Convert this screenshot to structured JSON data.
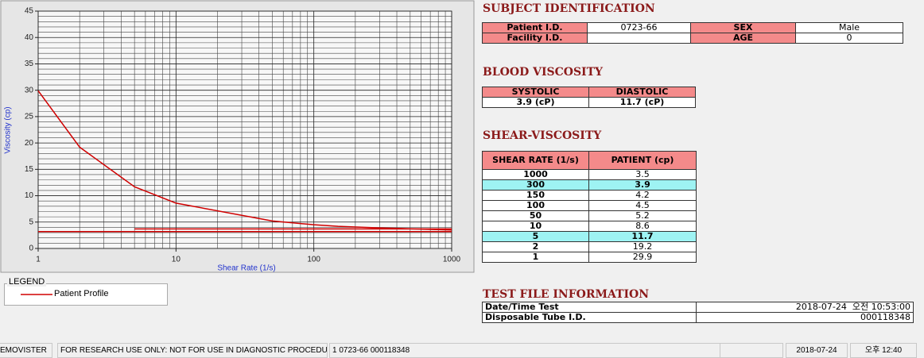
{
  "chart": {
    "type": "line",
    "x_label": "Shear Rate (1/s)",
    "y_label": "Viscosity (cp)",
    "xlim": [
      1,
      1000
    ],
    "ylim": [
      0,
      45
    ],
    "log_x": true,
    "grid": true,
    "xticks": [
      1,
      10,
      100,
      1000
    ],
    "xminor": [
      2,
      3,
      4,
      5,
      6,
      7,
      8,
      9,
      20,
      30,
      40,
      50,
      60,
      70,
      80,
      90,
      200,
      300,
      400,
      500,
      600,
      700,
      800,
      900
    ],
    "yticks": [
      0,
      5,
      10,
      15,
      20,
      25,
      30,
      35,
      40,
      45
    ],
    "yminor": [
      1,
      2,
      3,
      4,
      6,
      7,
      8,
      9,
      11,
      12,
      13,
      14,
      16,
      17,
      18,
      19,
      21,
      22,
      23,
      24,
      26,
      27,
      28,
      29,
      31,
      32,
      33,
      34,
      36,
      37,
      38,
      39,
      41,
      42,
      43,
      44
    ],
    "series": [
      {
        "name": "Patient Profile",
        "color": "#d00000",
        "x": [
          1,
          2,
          5,
          10,
          50,
          100,
          150,
          300,
          1000
        ],
        "values": [
          29.9,
          19.2,
          11.7,
          8.6,
          5.2,
          4.5,
          4.2,
          3.9,
          3.5
        ]
      }
    ],
    "reference_lines": [
      {
        "color": "#d00000",
        "x": [
          1,
          1000
        ],
        "values": [
          3.2,
          3.2
        ]
      },
      {
        "color": "#d00000",
        "x": [
          5,
          1000
        ],
        "values": [
          3.7,
          3.7
        ]
      }
    ],
    "legend_title": "LEGEND"
  },
  "subject": {
    "title": "SUBJECT IDENTIFICATION",
    "rows": [
      {
        "label": "Patient I.D.",
        "value": "0723-66",
        "label2": "SEX",
        "value2": "Male"
      },
      {
        "label": "Facility I.D.",
        "label2": "AGE",
        "value2": "0"
      }
    ]
  },
  "blood": {
    "title": "BLOOD VISCOSITY",
    "headers": [
      "SYSTOLIC",
      "DIASTOLIC"
    ],
    "values": [
      "3.9 (cP)",
      "11.7 (cP)"
    ]
  },
  "shear": {
    "title": "SHEAR-VISCOSITY",
    "headers": [
      "SHEAR RATE (1/s)",
      "PATIENT (cp)"
    ],
    "rows": [
      [
        "1000",
        "3.5"
      ],
      [
        "300",
        "3.9"
      ],
      [
        "150",
        "4.2"
      ],
      [
        "100",
        "4.5"
      ],
      [
        "50",
        "5.2"
      ],
      [
        "10",
        "8.6"
      ],
      [
        "5",
        "11.7"
      ],
      [
        "2",
        "19.2"
      ],
      [
        "1",
        "29.9"
      ]
    ],
    "highlight": [
      1,
      6
    ]
  },
  "test": {
    "title": "TEST FILE INFORMATION",
    "rows": [
      {
        "label": "Date/Time Test",
        "date": "2018-07-24",
        "time": "오전 10:53:00"
      },
      {
        "label": "Disposable Tube I.D.",
        "value": "000118348"
      }
    ]
  },
  "status": {
    "app": "EMOVISTER",
    "notice": "FOR RESEARCH USE ONLY: NOT FOR USE IN DIAGNOSTIC PROCEDURES",
    "record": "1  0723-66  000118348",
    "date": "2018-07-24",
    "time": "오후 12:40"
  }
}
